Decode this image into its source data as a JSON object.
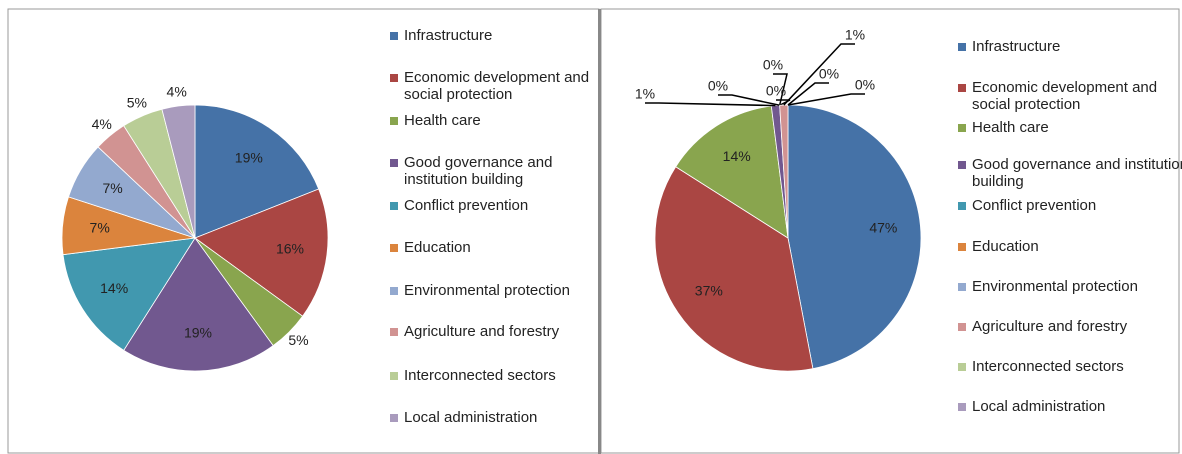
{
  "chart_data": [
    {
      "type": "pie",
      "categories": [
        "Infrastructure",
        "Economic development and social protection",
        "Health care",
        "Good governance and institution building",
        "Conflict prevention",
        "Education",
        "Environmental protection",
        "Agriculture and forestry",
        "Interconnected sectors",
        "Local administration"
      ],
      "values": [
        19,
        16,
        5,
        19,
        14,
        7,
        7,
        4,
        5,
        4
      ],
      "value_labels": [
        "19%",
        "16%",
        "5%",
        "19%",
        "14%",
        "7%",
        "7%",
        "4%",
        "5%",
        "4%"
      ],
      "colors": [
        "#4572A7",
        "#AA4643",
        "#89A54E",
        "#71588F",
        "#4198AF",
        "#DB843D",
        "#93A9CF",
        "#D19392",
        "#B9CD96",
        "#A99BBD"
      ],
      "legend": "right"
    },
    {
      "type": "pie",
      "categories": [
        "Infrastructure",
        "Economic development and social protection",
        "Health care",
        "Good governance and institution building",
        "Conflict prevention",
        "Education",
        "Environmental protection",
        "Agriculture and forestry",
        "Interconnected sectors",
        "Local administration"
      ],
      "values": [
        47,
        37,
        14,
        1,
        0,
        0,
        0,
        1,
        0,
        0
      ],
      "value_labels": [
        "47%",
        "37%",
        "14%",
        "1%",
        "0%",
        "0%",
        "0%",
        "1%",
        "0%",
        "0%"
      ],
      "colors": [
        "#4572A7",
        "#AA4643",
        "#89A54E",
        "#71588F",
        "#4198AF",
        "#DB843D",
        "#93A9CF",
        "#D19392",
        "#B9CD96",
        "#A99BBD"
      ],
      "legend": "right"
    }
  ]
}
